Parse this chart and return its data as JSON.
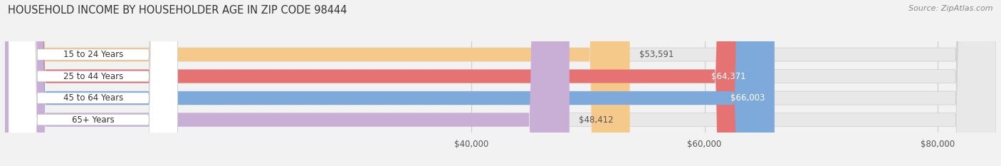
{
  "title": "HOUSEHOLD INCOME BY HOUSEHOLDER AGE IN ZIP CODE 98444",
  "source": "Source: ZipAtlas.com",
  "categories": [
    "15 to 24 Years",
    "25 to 44 Years",
    "45 to 64 Years",
    "65+ Years"
  ],
  "values": [
    53591,
    64371,
    66003,
    48412
  ],
  "bar_colors": [
    "#f5c98a",
    "#e57373",
    "#7eaadb",
    "#c9aed6"
  ],
  "value_labels": [
    "$53,591",
    "$64,371",
    "$66,003",
    "$48,412"
  ],
  "value_label_inside": [
    false,
    true,
    true,
    false
  ],
  "value_label_color_inside": "#ffffff",
  "value_label_color_outside": "#555555",
  "xmin": 0,
  "xmax": 85000,
  "xticks": [
    40000,
    60000,
    80000
  ],
  "xtick_labels": [
    "$40,000",
    "$60,000",
    "$80,000"
  ],
  "background_color": "#f2f2f2",
  "bar_bg_color": "#e8e8e8",
  "pill_bg_color": "#ffffff",
  "title_fontsize": 10.5,
  "source_fontsize": 8,
  "label_fontsize": 8.5,
  "tick_fontsize": 8.5,
  "bar_height": 0.62
}
